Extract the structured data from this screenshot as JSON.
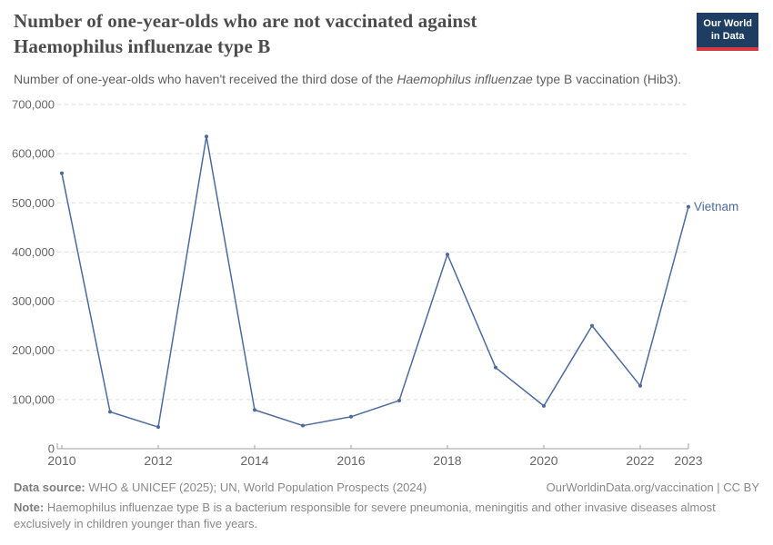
{
  "header": {
    "title": "Number of one-year-olds who are not vaccinated against Haemophilus influenzae type B",
    "subtitle_prefix": "Number of one-year-olds who haven't received the third dose of the ",
    "subtitle_italic": "Haemophilus influenzae",
    "subtitle_suffix": " type B vaccination (Hib3).",
    "logo": {
      "line1": "Our World",
      "line2": "in Data"
    }
  },
  "chart_data": {
    "type": "line",
    "title": "Number of one-year-olds who are not vaccinated against Haemophilus influenzae type B",
    "x": [
      2010,
      2011,
      2012,
      2013,
      2014,
      2015,
      2016,
      2017,
      2018,
      2019,
      2020,
      2021,
      2022,
      2023
    ],
    "series": [
      {
        "name": "Vietnam",
        "values": [
          560000,
          75000,
          44000,
          635000,
          79000,
          47000,
          65000,
          98000,
          395000,
          165000,
          87000,
          250000,
          128000,
          492000
        ]
      }
    ],
    "ylim": [
      0,
      700000
    ],
    "yticks": [
      0,
      100000,
      200000,
      300000,
      400000,
      500000,
      600000,
      700000
    ],
    "ytick_labels": [
      "0",
      "100,000",
      "200,000",
      "300,000",
      "400,000",
      "500,000",
      "600,000",
      "700,000"
    ],
    "xticks": [
      2010,
      2012,
      2014,
      2016,
      2018,
      2020,
      2022,
      2023
    ],
    "xtick_labels": [
      "2010",
      "2012",
      "2014",
      "2016",
      "2018",
      "2020",
      "2022",
      "2023"
    ],
    "grid": "horizontal-dashed",
    "legend_position": "end-of-line-label"
  },
  "colors": {
    "line": "#4c6a9c",
    "series_label": "#4c6a9c",
    "grid": "#dcdcdc",
    "axis": "#a1a1a1",
    "tick_label": "#666666",
    "title": "#4c4c4c",
    "subtitle": "#5f5f5f",
    "footer_text": "#888888",
    "logo_bg": "#1d3d63",
    "logo_stripe": "#d73a3f",
    "logo_text": "#ffffff"
  },
  "footer": {
    "datasource_label": "Data source:",
    "datasource_text": " WHO & UNICEF (2025); UN, World Population Prospects (2024)",
    "attribution": "OurWorldinData.org/vaccination | CC BY",
    "note_label": "Note:",
    "note_text": " Haemophilus influenzae type B is a bacterium responsible for severe pneumonia, meningitis and other invasive diseases almost exclusively in children younger than five years."
  }
}
